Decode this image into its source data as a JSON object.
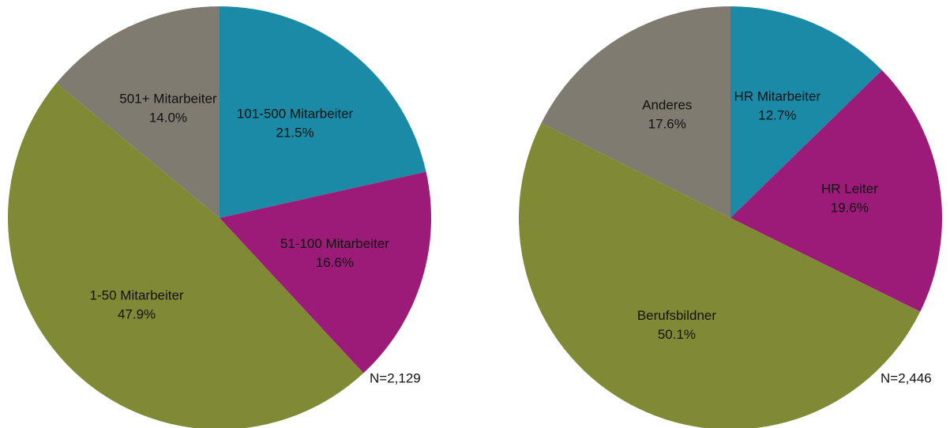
{
  "chart_data": [
    {
      "type": "pie",
      "categories": [
        "101-500 Mitarbeiter",
        "51-100 Mitarbeiter",
        "1-50 Mitarbeiter",
        "501+ Mitarbeiter"
      ],
      "values": [
        21.5,
        16.6,
        47.9,
        14.0
      ],
      "value_labels": [
        "21.5%",
        "16.6%",
        "47.9%",
        "14.0%"
      ],
      "colors": [
        "#1a8aa6",
        "#9c1a78",
        "#808a35",
        "#7f7b70"
      ],
      "annotation": "N=2,129"
    },
    {
      "type": "pie",
      "categories": [
        "HR Mitarbeiter",
        "HR Leiter",
        "Berufsbildner",
        "Anderes"
      ],
      "values": [
        12.7,
        19.6,
        50.1,
        17.6
      ],
      "value_labels": [
        "12.7%",
        "19.6%",
        "50.1%",
        "17.6%"
      ],
      "colors": [
        "#1a8aa6",
        "#9c1a78",
        "#808a35",
        "#7f7b70"
      ],
      "annotation": "N=2,446"
    }
  ]
}
